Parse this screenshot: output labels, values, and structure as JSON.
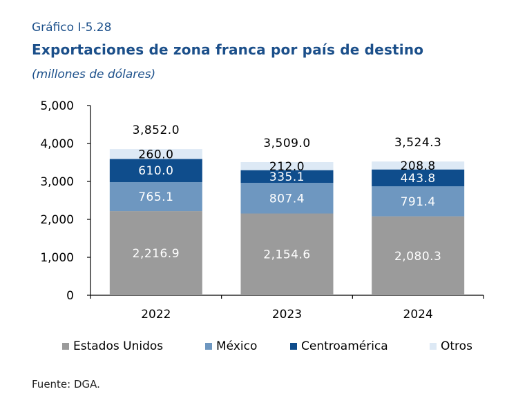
{
  "header": {
    "label": "Gráfico I-5.28",
    "title": "Exportaciones de zona franca por país de destino",
    "subtitle": "(millones de dólares)"
  },
  "source": "Fuente: DGA.",
  "colors": {
    "Estados Unidos": "#9b9b9b",
    "México": "#6e97c0",
    "Centroamérica": "#0f4d8c",
    "Otros": "#dde9f5"
  },
  "chart_data": {
    "type": "bar",
    "stacked": true,
    "categories": [
      "2022",
      "2023",
      "2024"
    ],
    "series": [
      {
        "name": "Estados Unidos",
        "values": [
          2216.9,
          2154.6,
          2080.3
        ],
        "labels": [
          "2,216.9",
          "2,154.6",
          "2,080.3"
        ]
      },
      {
        "name": "México",
        "values": [
          765.1,
          807.4,
          791.4
        ],
        "labels": [
          "765.1",
          "807.4",
          "791.4"
        ]
      },
      {
        "name": "Centroamérica",
        "values": [
          610.0,
          335.1,
          443.8
        ],
        "labels": [
          "610.0",
          "335.1",
          "443.8"
        ]
      },
      {
        "name": "Otros",
        "values": [
          260.0,
          212.0,
          208.8
        ],
        "labels": [
          "260.0",
          "212.0",
          "208.8"
        ]
      }
    ],
    "totals": [
      3852.0,
      3509.0,
      3524.3
    ],
    "total_labels": [
      "3,852.0",
      "3,509.0",
      "3,524.3"
    ],
    "ylim": [
      0,
      5000
    ],
    "yticks": [
      0,
      1000,
      2000,
      3000,
      4000,
      5000
    ],
    "ytick_labels": [
      "0",
      "1,000",
      "2,000",
      "3,000",
      "4,000",
      "5,000"
    ],
    "legend_position": "bottom",
    "grid": false
  }
}
